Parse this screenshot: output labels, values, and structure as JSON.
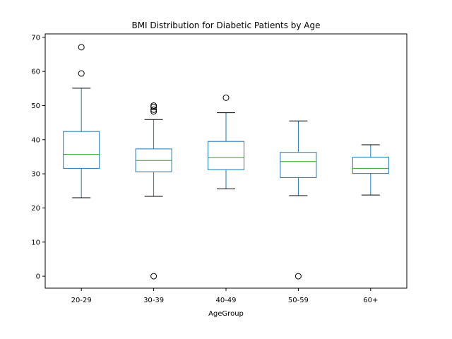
{
  "chart_data": {
    "type": "box",
    "title": "BMI Distribution for Diabetic Patients by Age",
    "xlabel": "AgeGroup",
    "ylabel": "",
    "ylim": [
      -3.5,
      71
    ],
    "yticks": [
      0,
      10,
      20,
      30,
      40,
      50,
      60,
      70
    ],
    "grid": false,
    "colors": {
      "box": "#1f77b4",
      "median": "#2ca02c",
      "whisker_cap": "#000000",
      "flier": "#000000"
    },
    "categories": [
      "20-29",
      "30-39",
      "40-49",
      "50-59",
      "60+"
    ],
    "boxes": [
      {
        "category": "20-29",
        "whisker_low": 23.0,
        "q1": 31.6,
        "median": 35.7,
        "q3": 42.4,
        "whisker_high": 55.1,
        "fliers": [
          59.4,
          67.1
        ]
      },
      {
        "category": "30-39",
        "whisker_low": 23.4,
        "q1": 30.6,
        "median": 33.9,
        "q3": 37.3,
        "whisker_high": 45.9,
        "fliers": [
          0,
          48.3,
          48.8,
          49.6,
          50.0
        ]
      },
      {
        "category": "40-49",
        "whisker_low": 25.6,
        "q1": 31.2,
        "median": 34.7,
        "q3": 39.5,
        "whisker_high": 47.9,
        "fliers": [
          52.3
        ]
      },
      {
        "category": "50-59",
        "whisker_low": 23.6,
        "q1": 28.9,
        "median": 33.6,
        "q3": 36.3,
        "whisker_high": 45.5,
        "fliers": [
          0
        ]
      },
      {
        "category": "60+",
        "whisker_low": 23.8,
        "q1": 30.1,
        "median": 31.6,
        "q3": 34.9,
        "whisker_high": 38.5,
        "fliers": []
      }
    ]
  }
}
